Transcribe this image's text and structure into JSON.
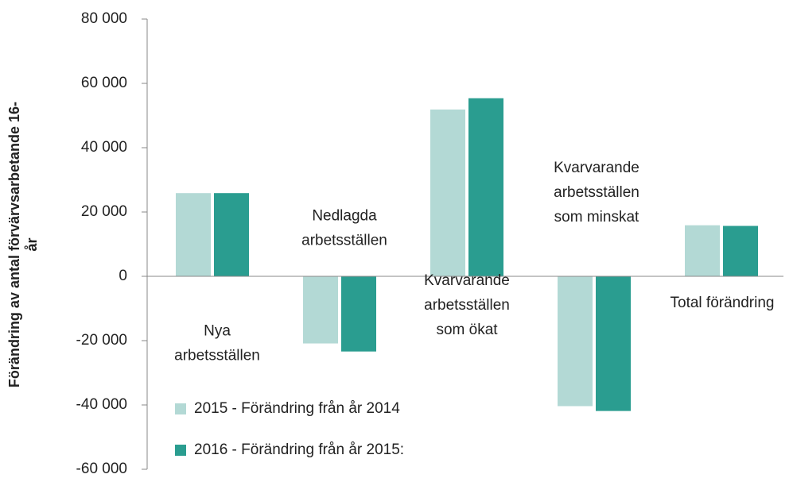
{
  "chart_data": {
    "type": "bar",
    "y_label": "Förändring av antal förvärvsarbetande 16-\når",
    "categories": [
      "Nya\narbetsställen",
      "Nedlagda\narbetsställen",
      "Kvarvarande\narbetsställen\nsom ökat",
      "Kvarvarande\narbetsställen\nsom minskat",
      "Total förändring"
    ],
    "series": [
      {
        "name": "2015 - Förändring från år 2014",
        "color": "#b3d9d5",
        "values": [
          26000,
          -21000,
          52000,
          -40500,
          16000
        ]
      },
      {
        "name": "2016 - Förändring från år 2015:",
        "color": "#2a9d90",
        "values": [
          26000,
          -23500,
          55500,
          -42000,
          15800
        ]
      }
    ],
    "ylim": [
      -60000,
      80000
    ],
    "yticks": [
      {
        "value": -60000,
        "label": "-60 000"
      },
      {
        "value": -40000,
        "label": "-40 000"
      },
      {
        "value": -20000,
        "label": "-20 000"
      },
      0,
      {
        "value": 20000,
        "label": "20 000"
      },
      {
        "value": 40000,
        "label": "40 000"
      },
      {
        "value": 60000,
        "label": "60 000"
      },
      {
        "value": 80000,
        "label": "80 000"
      }
    ],
    "legend": "lower-left"
  }
}
